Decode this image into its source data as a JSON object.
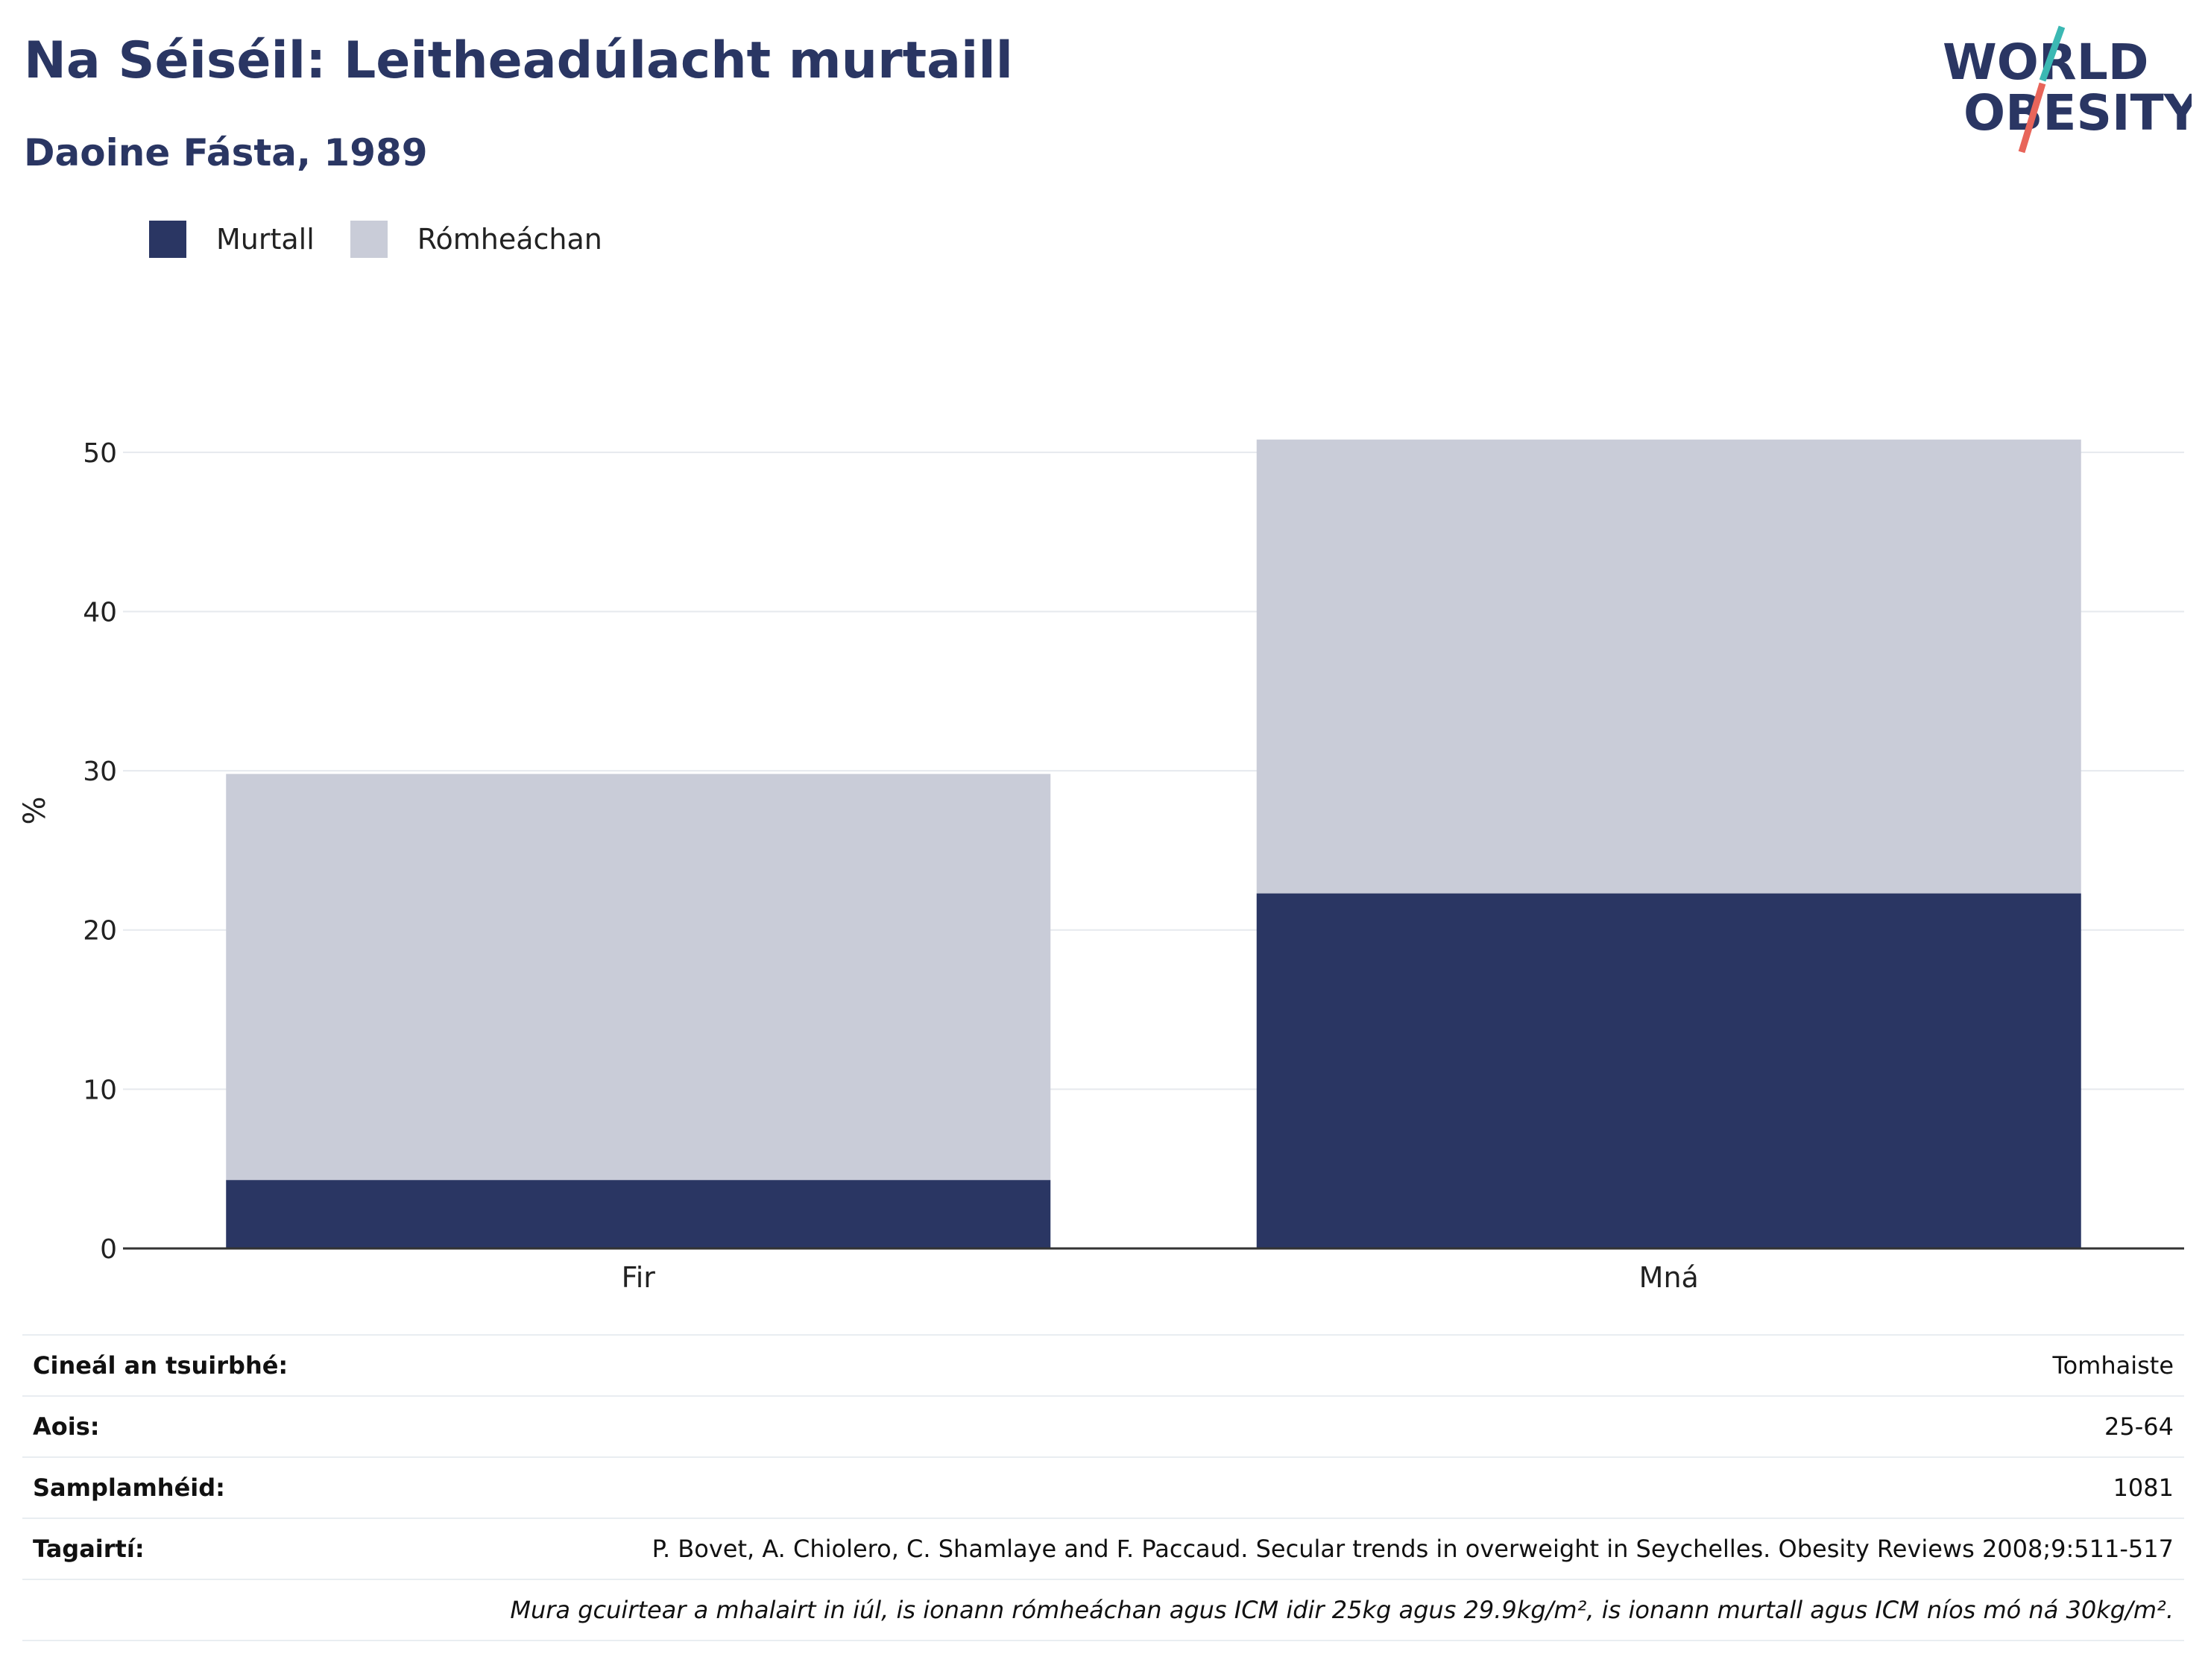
{
  "header": {
    "title": "Na Séiséil: Leitheadúlacht murtaill",
    "subtitle": "Daoine Fásta, 1989"
  },
  "logo": {
    "line1": "WORLD",
    "line2": "OBESITY",
    "colors": {
      "text": "#2a3663",
      "accent_teal": "#3bb8b3",
      "accent_red": "#e8655a"
    }
  },
  "legend": [
    {
      "label": "Murtall",
      "color": "#2a3663"
    },
    {
      "label": "Rómheáchan",
      "color": "#c9ccd8"
    }
  ],
  "chart_data": {
    "type": "bar",
    "stacked": true,
    "categories": [
      "Fir",
      "Mná"
    ],
    "series": [
      {
        "name": "Murtall",
        "values": [
          4.3,
          22.3
        ],
        "color": "#2a3663"
      },
      {
        "name": "Rómheáchan",
        "values": [
          25.5,
          28.5
        ],
        "color": "#c9ccd8"
      }
    ],
    "ylabel": "%",
    "ylim": [
      0,
      55
    ],
    "yticks": [
      0,
      10,
      20,
      30,
      40,
      50
    ],
    "grid": true
  },
  "info": {
    "rows": [
      {
        "key": "Cineál an tsuirbhé:",
        "value": "Tomhaiste"
      },
      {
        "key": "Aois:",
        "value": "25-64"
      },
      {
        "key": "Samplamhéid:",
        "value": "1081"
      },
      {
        "key": "Tagairtí:",
        "value": "P. Bovet, A. Chiolero, C. Shamlaye and F. Paccaud. Secular trends in overweight in Seychelles. Obesity Reviews 2008;9:511-517"
      }
    ],
    "note": "Mura gcuirtear a mhalairt in iúl, is ionann rómheáchan agus ICM idir 25kg agus 29.9kg/m², is ionann murtall agus ICM níos mó ná 30kg/m²."
  }
}
